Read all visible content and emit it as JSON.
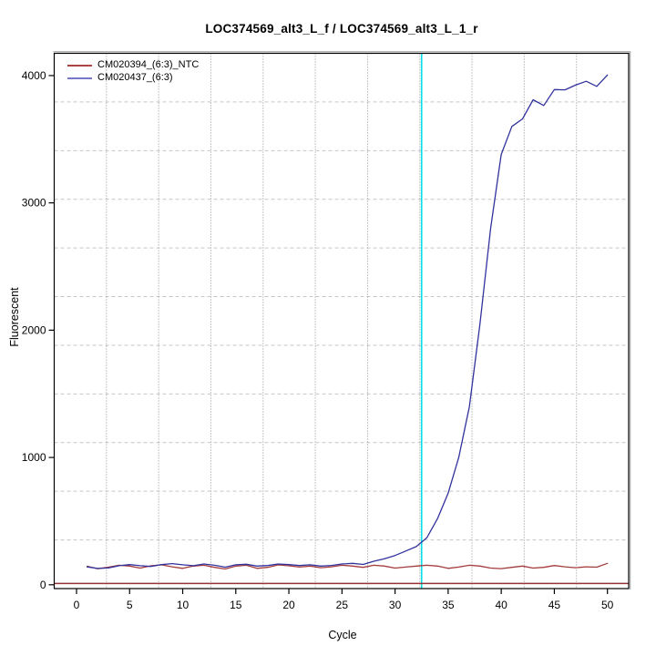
{
  "window": {
    "background": "#ffffff"
  },
  "chart_data": {
    "type": "line",
    "title": "LOC374569_alt3_L_f / LOC374569_alt3_L_1_r",
    "xlabel": "Cycle",
    "ylabel": "Fluorescent",
    "xlim": [
      -2.1,
      52
    ],
    "ylim": [
      -30,
      4175
    ],
    "x_ticks": [
      0,
      5,
      10,
      15,
      20,
      25,
      30,
      35,
      40,
      45,
      50
    ],
    "y_ticks": [
      0,
      1000,
      2000,
      3000,
      4000
    ],
    "grid": {
      "v_divisions": 11,
      "h_divisions": 11,
      "v_color": "#8f8f8f",
      "h_color": "#c6c6c6",
      "legend_position": "top-left"
    },
    "threshold_line": {
      "value": 10,
      "color": "#993333"
    },
    "ct_line": {
      "cycle": 32.5,
      "color": "#00dfe8"
    },
    "axis_color": "#000000",
    "box_shadow_color": "#9a9a9a",
    "x": [
      1,
      2,
      3,
      4,
      5,
      6,
      7,
      8,
      9,
      10,
      11,
      12,
      13,
      14,
      15,
      16,
      17,
      18,
      19,
      20,
      21,
      22,
      23,
      24,
      25,
      26,
      27,
      28,
      29,
      30,
      31,
      32,
      33,
      34,
      35,
      36,
      37,
      38,
      39,
      40,
      41,
      42,
      43,
      44,
      45,
      46,
      47,
      48,
      49,
      50
    ],
    "series": [
      {
        "name": "CM020394_(6:3)_NTC",
        "color": "#a43b3b",
        "legend_color": "#aa4444",
        "values": [
          145,
          126,
          138,
          153,
          147,
          131,
          149,
          157,
          141,
          129,
          147,
          153,
          137,
          124,
          147,
          153,
          129,
          137,
          156,
          149,
          139,
          147,
          134,
          141,
          153,
          147,
          137,
          153,
          147,
          131,
          139,
          147,
          153,
          147,
          129,
          139,
          153,
          147,
          131,
          127,
          137,
          147,
          131,
          137,
          151,
          141,
          134,
          141,
          138,
          168
        ]
      },
      {
        "name": "CM020437_(6:3)",
        "color": "#32329e",
        "legend_color": "#7777cc",
        "values": [
          140,
          128,
          132,
          150,
          158,
          150,
          144,
          158,
          166,
          157,
          150,
          163,
          153,
          138,
          157,
          161,
          147,
          151,
          163,
          158,
          151,
          157,
          147,
          152,
          163,
          168,
          160,
          185,
          205,
          230,
          265,
          300,
          370,
          520,
          720,
          1000,
          1400,
          2050,
          2800,
          3380,
          3600,
          3660,
          3810,
          3765,
          3890,
          3888,
          3925,
          3955,
          3915,
          4005
        ]
      }
    ]
  }
}
